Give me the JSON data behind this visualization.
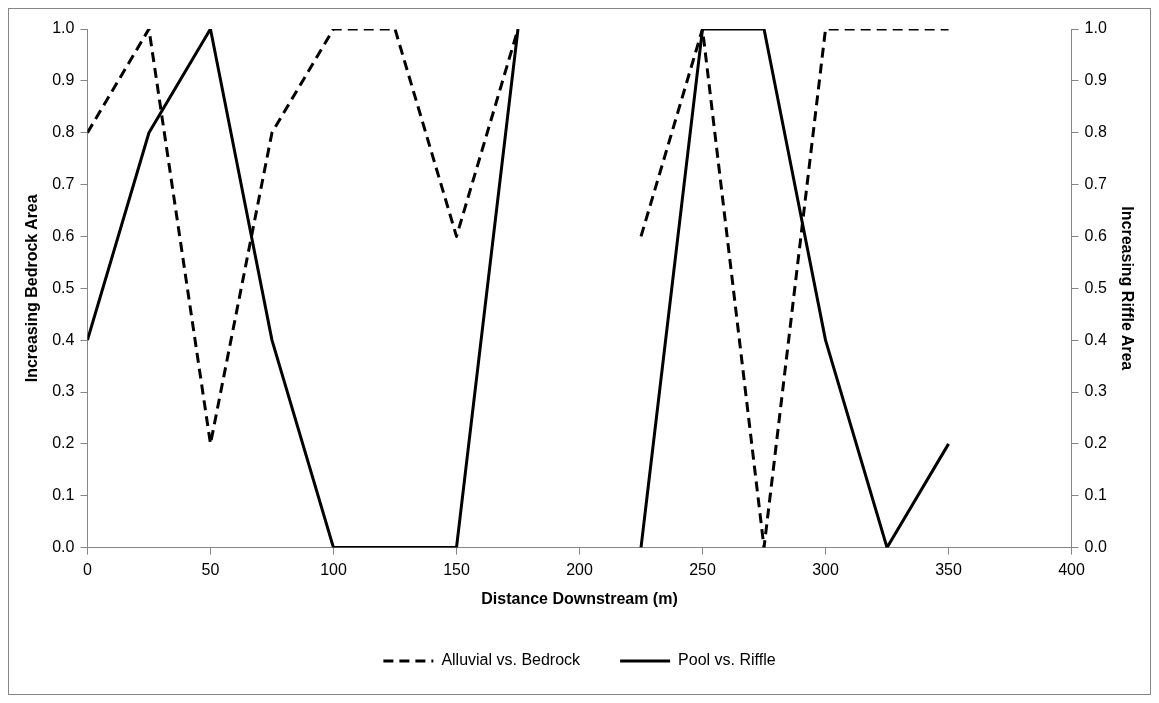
{
  "chart_data": {
    "type": "line",
    "xlabel": "Distance Downstream (m)",
    "ylabel": "Increasing Bedrock Area",
    "y2label": "Increasing Riffle Area",
    "x": [
      0,
      25,
      50,
      75,
      100,
      125,
      150,
      175,
      200,
      225,
      250,
      275,
      300,
      325,
      350
    ],
    "series": [
      {
        "name": "Alluvial vs. Bedrock",
        "color": "#000000",
        "line_style": "dashed",
        "values": [
          0.8,
          1.0,
          0.2,
          0.8,
          1.0,
          1.0,
          0.6,
          1.0,
          null,
          0.6,
          1.0,
          0.0,
          1.0,
          1.0,
          1.0
        ]
      },
      {
        "name": "Pool vs. Riffle",
        "color": "#000000",
        "line_style": "solid",
        "axis": "y2",
        "values": [
          0.4,
          0.8,
          1.0,
          0.4,
          0.0,
          0.0,
          0.0,
          1.0,
          null,
          0.0,
          1.0,
          1.0,
          0.4,
          0.0,
          0.2
        ]
      }
    ],
    "xlim": [
      0,
      400
    ],
    "xticks": [
      0,
      50,
      100,
      150,
      200,
      250,
      300,
      350,
      400
    ],
    "ylim": [
      0,
      1
    ],
    "yticks": [
      {
        "value": 0,
        "label": "0.0"
      },
      {
        "value": 0.1,
        "label": "0.1"
      },
      {
        "value": 0.2,
        "label": "0.2"
      },
      {
        "value": 0.3,
        "label": "0.3"
      },
      {
        "value": 0.4,
        "label": "0.4"
      },
      {
        "value": 0.5,
        "label": "0.5"
      },
      {
        "value": 0.6,
        "label": "0.6"
      },
      {
        "value": 0.7,
        "label": "0.7"
      },
      {
        "value": 0.8,
        "label": "0.8"
      },
      {
        "value": 0.9,
        "label": "0.9"
      },
      {
        "value": 1,
        "label": "1.0"
      }
    ],
    "y2lim": [
      0,
      1
    ],
    "y2ticks": [
      {
        "value": 0,
        "label": "0.0"
      },
      {
        "value": 0.1,
        "label": "0.1"
      },
      {
        "value": 0.2,
        "label": "0.2"
      },
      {
        "value": 0.3,
        "label": "0.3"
      },
      {
        "value": 0.4,
        "label": "0.4"
      },
      {
        "value": 0.5,
        "label": "0.5"
      },
      {
        "value": 0.6,
        "label": "0.6"
      },
      {
        "value": 0.7,
        "label": "0.7"
      },
      {
        "value": 0.8,
        "label": "0.8"
      },
      {
        "value": 0.9,
        "label": "0.9"
      },
      {
        "value": 1,
        "label": "1.0"
      }
    ],
    "grid": false,
    "legend": "bottom",
    "marker": "none"
  }
}
